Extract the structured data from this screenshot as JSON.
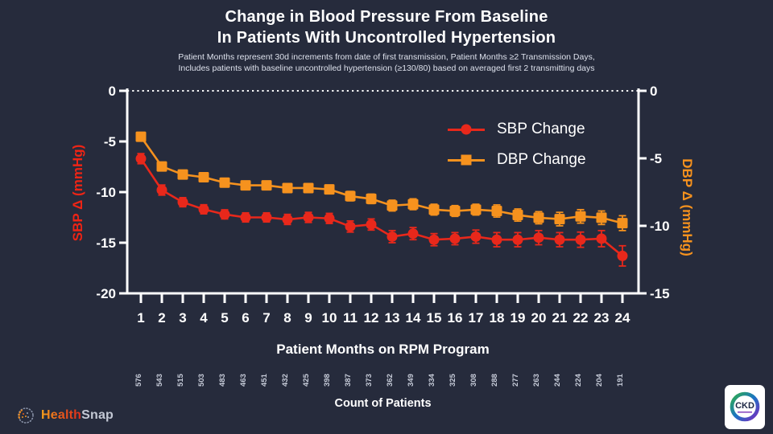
{
  "title": {
    "line1": "Change in Blood Pressure From Baseline",
    "line2": "In Patients With Uncontrolled Hypertension"
  },
  "subtitle": {
    "line1": "Patient Months represent 30d increments from date of first transmission,  Patient Months ≥2 Transmission Days,",
    "line2": "Includes patients with baseline uncontrolled hypertension (≥130/80) based on averaged first 2 transmitting days"
  },
  "legend": [
    {
      "label": "SBP Change",
      "marker": "circle",
      "color": "#e8281b"
    },
    {
      "label": "DBP Change",
      "marker": "square",
      "color": "#f6921e"
    }
  ],
  "chart_data": {
    "type": "line",
    "x": [
      1,
      2,
      3,
      4,
      5,
      6,
      7,
      8,
      9,
      10,
      11,
      12,
      13,
      14,
      15,
      16,
      17,
      18,
      19,
      20,
      21,
      22,
      23,
      24
    ],
    "xlabel": "Patient Months on RPM Program",
    "zero_line": {
      "style": "dotted",
      "color": "#ffffff",
      "value": 0
    },
    "left_axis": {
      "label": "SBP Δ (mmHg)",
      "color": "#ee2415",
      "ticks": [
        0,
        -5,
        -10,
        -15,
        -20
      ],
      "range": [
        0,
        -20
      ]
    },
    "right_axis": {
      "label": "DBP Δ (mmHg)",
      "color": "#f6921e",
      "ticks": [
        0,
        -5,
        -10,
        -15
      ],
      "range": [
        0,
        -15
      ]
    },
    "series": [
      {
        "name": "SBP Change",
        "axis": "left",
        "marker": "circle",
        "color": "#e8281b",
        "values": [
          -6.7,
          -9.8,
          -11.0,
          -11.7,
          -12.2,
          -12.5,
          -12.5,
          -12.7,
          -12.5,
          -12.6,
          -13.4,
          -13.2,
          -14.4,
          -14.1,
          -14.7,
          -14.6,
          -14.4,
          -14.7,
          -14.7,
          -14.5,
          -14.7,
          -14.7,
          -14.6,
          -16.3
        ],
        "errors": [
          0.5,
          0.5,
          0.45,
          0.45,
          0.45,
          0.45,
          0.45,
          0.5,
          0.5,
          0.5,
          0.55,
          0.55,
          0.6,
          0.6,
          0.6,
          0.6,
          0.65,
          0.7,
          0.7,
          0.7,
          0.7,
          0.75,
          0.8,
          1.0
        ]
      },
      {
        "name": "DBP Change",
        "axis": "right",
        "marker": "square",
        "color": "#f6921e",
        "values": [
          -3.4,
          -5.6,
          -6.2,
          -6.4,
          -6.8,
          -7.0,
          -7.0,
          -7.2,
          -7.2,
          -7.3,
          -7.8,
          -8.0,
          -8.5,
          -8.4,
          -8.8,
          -8.9,
          -8.8,
          -8.9,
          -9.2,
          -9.4,
          -9.5,
          -9.3,
          -9.4,
          -9.8
        ],
        "errors": [
          0.3,
          0.3,
          0.3,
          0.3,
          0.3,
          0.3,
          0.3,
          0.3,
          0.3,
          0.3,
          0.35,
          0.35,
          0.4,
          0.4,
          0.4,
          0.4,
          0.4,
          0.45,
          0.45,
          0.45,
          0.5,
          0.5,
          0.5,
          0.55
        ]
      }
    ],
    "counts": {
      "label": "Count of Patients",
      "values": [
        576,
        543,
        515,
        503,
        483,
        463,
        451,
        432,
        425,
        398,
        387,
        373,
        362,
        349,
        334,
        325,
        308,
        288,
        277,
        263,
        244,
        224,
        204,
        191
      ]
    }
  },
  "footer": {
    "brand": {
      "part1": "Health",
      "part2": "Snap"
    },
    "badge_text": "CKD"
  },
  "colors": {
    "background": "#262b3c",
    "axis": "#ffffff",
    "count_text": "#c7ccd9"
  }
}
